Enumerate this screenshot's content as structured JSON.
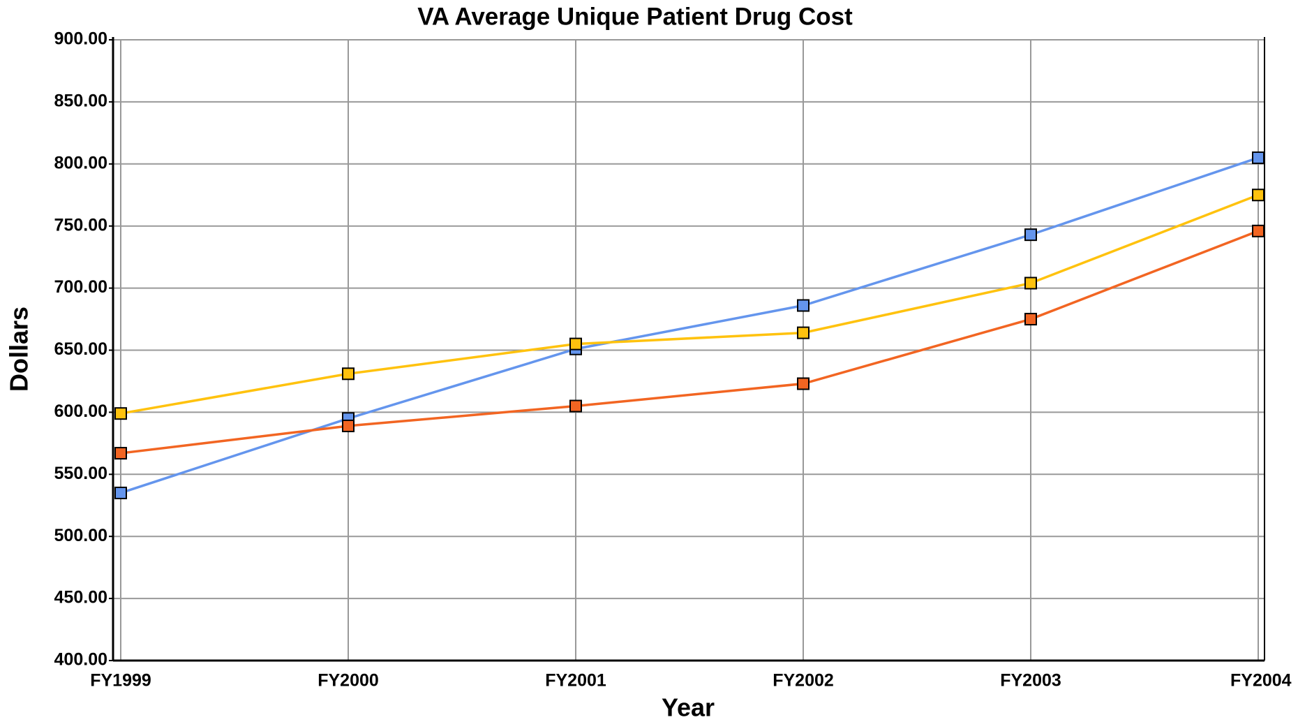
{
  "chart_data": {
    "type": "line",
    "title": "VA Average Unique Patient Drug Cost",
    "x_label": "Year",
    "y_label": "Dollars",
    "categories": [
      "FY1999",
      "FY2000",
      "FY2001",
      "FY2002",
      "FY2003",
      "FY2004"
    ],
    "series": [
      {
        "color": "#6495ed",
        "values": [
          535,
          595,
          651,
          686,
          743,
          805
        ]
      },
      {
        "color": "#ffc20e",
        "values": [
          599,
          631,
          655,
          664,
          704,
          775
        ]
      },
      {
        "color": "#f26522",
        "values": [
          567,
          589,
          605,
          623,
          675,
          746
        ]
      }
    ],
    "ylim": [
      400,
      900
    ],
    "yticks": [
      {
        "value": 400,
        "label": "400.00"
      },
      {
        "value": 450,
        "label": "450.00"
      },
      {
        "value": 500,
        "label": "500.00"
      },
      {
        "value": 550,
        "label": "550.00"
      },
      {
        "value": 600,
        "label": "600.00"
      },
      {
        "value": 650,
        "label": "650.00"
      },
      {
        "value": 700,
        "label": "700.00"
      },
      {
        "value": 750,
        "label": "750.00"
      },
      {
        "value": 800,
        "label": "800.00"
      },
      {
        "value": 850,
        "label": "850.00"
      },
      {
        "value": 900,
        "label": "900.00"
      }
    ],
    "grid": true
  }
}
